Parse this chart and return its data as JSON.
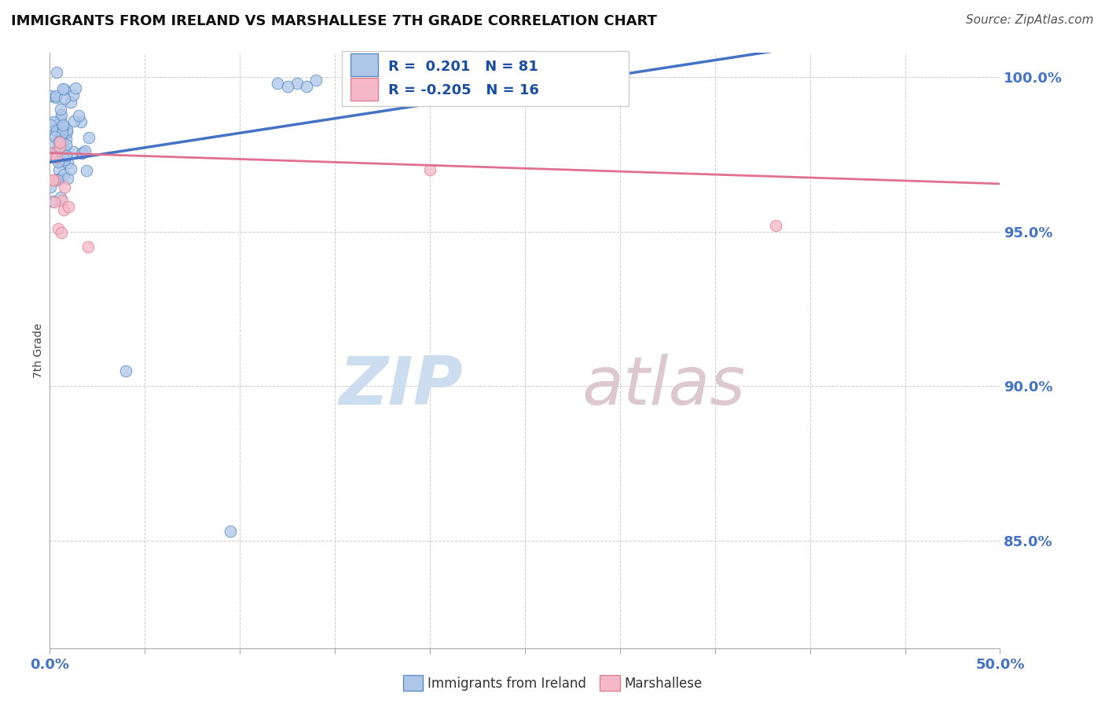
{
  "title": "IMMIGRANTS FROM IRELAND VS MARSHALLESE 7TH GRADE CORRELATION CHART",
  "source": "Source: ZipAtlas.com",
  "ylabel": "7th Grade",
  "xlim": [
    0.0,
    0.5
  ],
  "ylim": [
    0.815,
    1.008
  ],
  "yticks": [
    0.85,
    0.9,
    0.95,
    1.0
  ],
  "yticklabels": [
    "85.0%",
    "90.0%",
    "95.0%",
    "100.0%"
  ],
  "ireland_R": 0.201,
  "ireland_N": 81,
  "marshallese_R": -0.205,
  "marshallese_N": 16,
  "ireland_color": "#aec6e8",
  "ireland_edge_color": "#5b8ec4",
  "ireland_line_color": "#4472c4",
  "marshallese_color": "#f4b8c8",
  "marshallese_edge_color": "#e08090",
  "marshallese_line_color": "#e07090",
  "background_color": "#ffffff",
  "grid_color": "#cccccc",
  "watermark_zip_color": "#ccddf0",
  "watermark_atlas_color": "#ddc8d0"
}
